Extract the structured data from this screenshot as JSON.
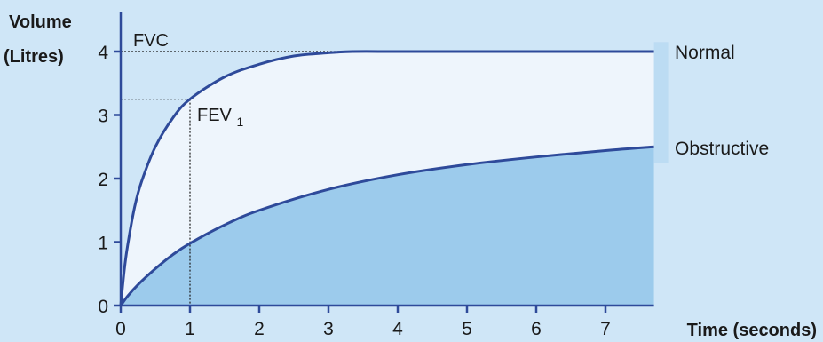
{
  "chart_data": {
    "type": "line",
    "ylabel_line1": "Volume",
    "ylabel_line2": "(Litres)",
    "xlabel": "Time (seconds)",
    "xlim": [
      0,
      7.7
    ],
    "ylim": [
      0,
      4
    ],
    "xticks": [
      0,
      1,
      2,
      3,
      4,
      5,
      6,
      7
    ],
    "yticks": [
      0,
      1,
      2,
      3,
      4
    ],
    "grid": false,
    "colors": {
      "background": "#cfe6f7",
      "plot_area": "#eef5fc",
      "obstructive_fill": "#9ccbec",
      "curve": "#2e4a9a",
      "axis": "#2e4a9a",
      "guide": "#1a1a1a",
      "right_bar": "#bcdcf3"
    },
    "series": [
      {
        "name": "Normal",
        "x": [
          0,
          0.05,
          0.1,
          0.2,
          0.3,
          0.5,
          0.75,
          1,
          1.5,
          2,
          2.5,
          3,
          3.35,
          4,
          5,
          6,
          7,
          7.7
        ],
        "values": [
          0,
          0.55,
          0.95,
          1.55,
          1.95,
          2.5,
          2.95,
          3.25,
          3.6,
          3.8,
          3.93,
          3.98,
          4.0,
          4.0,
          4.0,
          4.0,
          4.0,
          4.0
        ]
      },
      {
        "name": "Obstructive",
        "x": [
          0,
          0.1,
          0.25,
          0.5,
          0.75,
          1,
          1.5,
          2,
          3,
          4,
          5,
          6,
          7,
          7.7
        ],
        "values": [
          0,
          0.15,
          0.33,
          0.58,
          0.8,
          0.98,
          1.27,
          1.5,
          1.83,
          2.06,
          2.22,
          2.34,
          2.44,
          2.5
        ]
      }
    ],
    "annotations": {
      "fvc": {
        "label": "FVC",
        "value": 4.0
      },
      "fev1": {
        "label_main": "FEV",
        "label_sub": "1",
        "x": 1,
        "value": 3.25
      }
    }
  }
}
